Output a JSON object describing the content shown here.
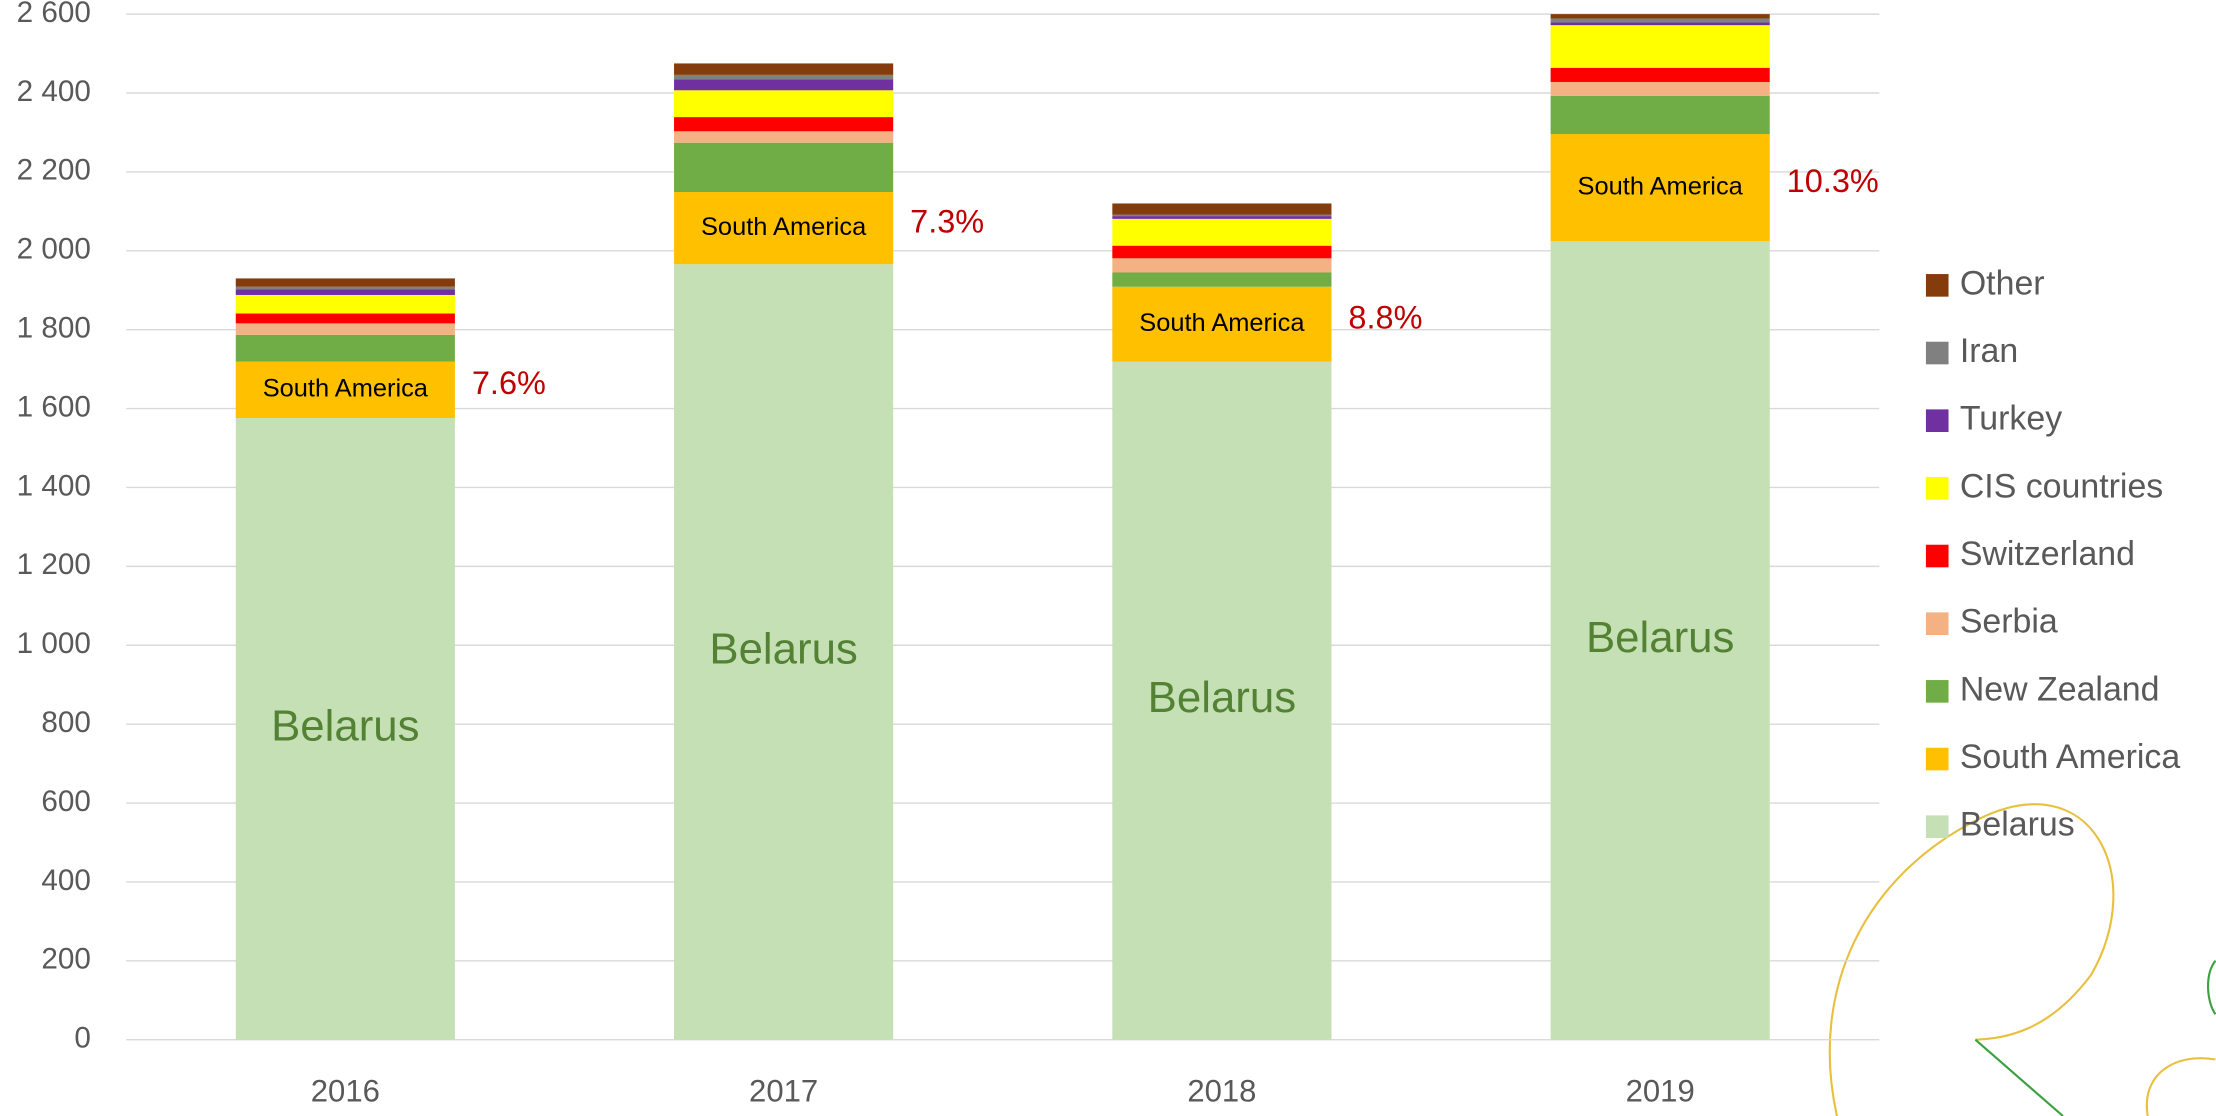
{
  "chart_data": {
    "type": "bar",
    "stacked": true,
    "categories": [
      "2016",
      "2017",
      "2018",
      "2019"
    ],
    "series": [
      {
        "name": "Belarus",
        "color": "#c5e0b4",
        "values": [
          1576,
          1966,
          1719,
          2024
        ]
      },
      {
        "name": "South America",
        "color": "#ffc000",
        "values": [
          143,
          183,
          190,
          272
        ]
      },
      {
        "name": "New Zealand",
        "color": "#70ad47",
        "values": [
          68,
          125,
          36,
          97
        ]
      },
      {
        "name": "Serbia",
        "color": "#f4b183",
        "values": [
          29,
          29,
          36,
          35
        ]
      },
      {
        "name": "Switzerland",
        "color": "#ff0000",
        "values": [
          25,
          36,
          32,
          36
        ]
      },
      {
        "name": "CIS countries",
        "color": "#ffff00",
        "values": [
          47,
          68,
          68,
          108
        ]
      },
      {
        "name": "Turkey",
        "color": "#7030a0",
        "values": [
          14,
          28,
          7,
          7
        ]
      },
      {
        "name": "Iran",
        "color": "#808080",
        "values": [
          7,
          11,
          4,
          10
        ]
      },
      {
        "name": "Other",
        "color": "#843c0c",
        "values": [
          21,
          29,
          28,
          11
        ]
      }
    ],
    "share_labels": [
      "7.6%",
      "7.3%",
      "8.8%",
      "10.3%"
    ],
    "ylim": [
      0,
      2600
    ],
    "yticks": [
      0,
      200,
      400,
      600,
      800,
      {
        "value": 1000,
        "label": "1 000"
      },
      {
        "value": 1200,
        "label": "1 200"
      },
      {
        "value": 1400,
        "label": "1 400"
      },
      {
        "value": 1600,
        "label": "1 600"
      },
      {
        "value": 1800,
        "label": "1 800"
      },
      {
        "value": 2000,
        "label": "2 000"
      },
      {
        "value": 2200,
        "label": "2 200"
      },
      {
        "value": 2400,
        "label": "2 400"
      },
      {
        "value": 2600,
        "label": "2 600"
      }
    ],
    "grid": true,
    "legend": "right"
  }
}
